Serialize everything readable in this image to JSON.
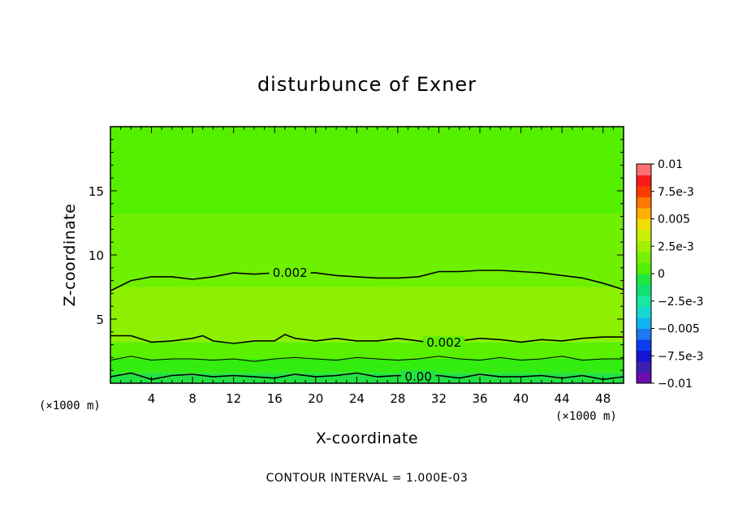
{
  "chart_data": {
    "type": "heatmap",
    "subtype": "filled-contour",
    "title": "disturbunce of Exner",
    "xlabel": "X-coordinate",
    "ylabel": "Z-coordinate",
    "x_unit": "(×1000 m)",
    "y_unit": "(×1000 m)",
    "xlim": [
      0,
      50
    ],
    "ylim": [
      0,
      20
    ],
    "x_ticks": [
      4,
      8,
      12,
      16,
      20,
      24,
      28,
      32,
      36,
      40,
      44,
      48
    ],
    "y_ticks": [
      5,
      10,
      15
    ],
    "colorbar": {
      "min": -0.01,
      "max": 0.01,
      "labels": [
        "0.01",
        "7.5e-3",
        "0.005",
        "2.5e-3",
        "0",
        "−2.5e-3",
        "−0.005",
        "−7.5e-3",
        "−0.01"
      ],
      "label_values": [
        0.01,
        0.0075,
        0.005,
        0.0025,
        0,
        -0.0025,
        -0.005,
        -0.0075,
        -0.01
      ],
      "colors": [
        "#6a0dad",
        "#3a1fb0",
        "#1414d2",
        "#0a3cf0",
        "#1e78f0",
        "#10b4f0",
        "#16d8d0",
        "#18e8a0",
        "#10e070",
        "#20e840",
        "#50f000",
        "#78f000",
        "#a0f000",
        "#c8f000",
        "#f0e000",
        "#ffb000",
        "#ff7800",
        "#ff3c00",
        "#ff1a1a",
        "#ff7070"
      ]
    },
    "bands": [
      {
        "z_low": 13.2,
        "z_high": 20,
        "value": 0.0011,
        "color": "#55f000"
      },
      {
        "z_low": 7.5,
        "z_high": 13.2,
        "value": 0.0017,
        "color": "#6ef000"
      },
      {
        "z_low": 3.2,
        "z_high": 7.5,
        "value": 0.0023,
        "color": "#8cf000"
      },
      {
        "z_low": 1.9,
        "z_high": 3.2,
        "value": 0.0014,
        "color": "#5af000"
      },
      {
        "z_low": 0.8,
        "z_high": 1.9,
        "value": 0.0006,
        "color": "#33ec10"
      },
      {
        "z_low": 0,
        "z_high": 0.8,
        "value": -0.0002,
        "color": "#22e242"
      }
    ],
    "contours": [
      {
        "level": 0.002,
        "label": "0.002",
        "label_x": 17.5,
        "z": [
          [
            0,
            7.2
          ],
          [
            2,
            8.0
          ],
          [
            4,
            8.3
          ],
          [
            6,
            8.3
          ],
          [
            8,
            8.1
          ],
          [
            10,
            8.3
          ],
          [
            12,
            8.6
          ],
          [
            14,
            8.5
          ],
          [
            16,
            8.6
          ],
          [
            18,
            8.6
          ],
          [
            20,
            8.6
          ],
          [
            22,
            8.4
          ],
          [
            24,
            8.3
          ],
          [
            26,
            8.2
          ],
          [
            28,
            8.2
          ],
          [
            30,
            8.3
          ],
          [
            32,
            8.7
          ],
          [
            34,
            8.7
          ],
          [
            36,
            8.8
          ],
          [
            38,
            8.8
          ],
          [
            40,
            8.7
          ],
          [
            42,
            8.6
          ],
          [
            44,
            8.4
          ],
          [
            46,
            8.2
          ],
          [
            48,
            7.8
          ],
          [
            50,
            7.3
          ]
        ]
      },
      {
        "level": 0.002,
        "label": "0.002",
        "label_x": 32.5,
        "z": [
          [
            0,
            3.7
          ],
          [
            2,
            3.7
          ],
          [
            4,
            3.2
          ],
          [
            6,
            3.3
          ],
          [
            8,
            3.5
          ],
          [
            9,
            3.7
          ],
          [
            10,
            3.3
          ],
          [
            12,
            3.1
          ],
          [
            14,
            3.3
          ],
          [
            16,
            3.3
          ],
          [
            17,
            3.8
          ],
          [
            18,
            3.5
          ],
          [
            20,
            3.3
          ],
          [
            22,
            3.5
          ],
          [
            24,
            3.3
          ],
          [
            26,
            3.3
          ],
          [
            28,
            3.5
          ],
          [
            30,
            3.3
          ],
          [
            32,
            3.1
          ],
          [
            34,
            3.3
          ],
          [
            36,
            3.5
          ],
          [
            38,
            3.4
          ],
          [
            40,
            3.2
          ],
          [
            42,
            3.4
          ],
          [
            44,
            3.3
          ],
          [
            46,
            3.5
          ],
          [
            48,
            3.6
          ],
          [
            50,
            3.6
          ]
        ]
      },
      {
        "level": 0.001,
        "label": "",
        "z": [
          [
            0,
            1.8
          ],
          [
            2,
            2.1
          ],
          [
            4,
            1.8
          ],
          [
            6,
            1.9
          ],
          [
            8,
            1.9
          ],
          [
            10,
            1.8
          ],
          [
            12,
            1.9
          ],
          [
            14,
            1.7
          ],
          [
            16,
            1.9
          ],
          [
            18,
            2.0
          ],
          [
            20,
            1.9
          ],
          [
            22,
            1.8
          ],
          [
            24,
            2.0
          ],
          [
            26,
            1.9
          ],
          [
            28,
            1.8
          ],
          [
            30,
            1.9
          ],
          [
            32,
            2.1
          ],
          [
            34,
            1.9
          ],
          [
            36,
            1.8
          ],
          [
            38,
            2.0
          ],
          [
            40,
            1.8
          ],
          [
            42,
            1.9
          ],
          [
            44,
            2.1
          ],
          [
            46,
            1.8
          ],
          [
            48,
            1.9
          ],
          [
            50,
            1.9
          ]
        ]
      },
      {
        "level": 0.0,
        "label": "0.00",
        "label_x": 30.0,
        "z": [
          [
            0,
            0.5
          ],
          [
            2,
            0.8
          ],
          [
            4,
            0.3
          ],
          [
            6,
            0.6
          ],
          [
            8,
            0.7
          ],
          [
            10,
            0.5
          ],
          [
            12,
            0.6
          ],
          [
            14,
            0.5
          ],
          [
            16,
            0.4
          ],
          [
            18,
            0.7
          ],
          [
            20,
            0.5
          ],
          [
            22,
            0.6
          ],
          [
            24,
            0.8
          ],
          [
            26,
            0.5
          ],
          [
            28,
            0.6
          ],
          [
            30,
            0.5
          ],
          [
            32,
            0.6
          ],
          [
            34,
            0.4
          ],
          [
            36,
            0.7
          ],
          [
            38,
            0.5
          ],
          [
            40,
            0.5
          ],
          [
            42,
            0.6
          ],
          [
            44,
            0.4
          ],
          [
            46,
            0.6
          ],
          [
            48,
            0.3
          ],
          [
            50,
            0.5
          ]
        ]
      }
    ],
    "footer": "CONTOUR INTERVAL = 1.000E-03"
  }
}
